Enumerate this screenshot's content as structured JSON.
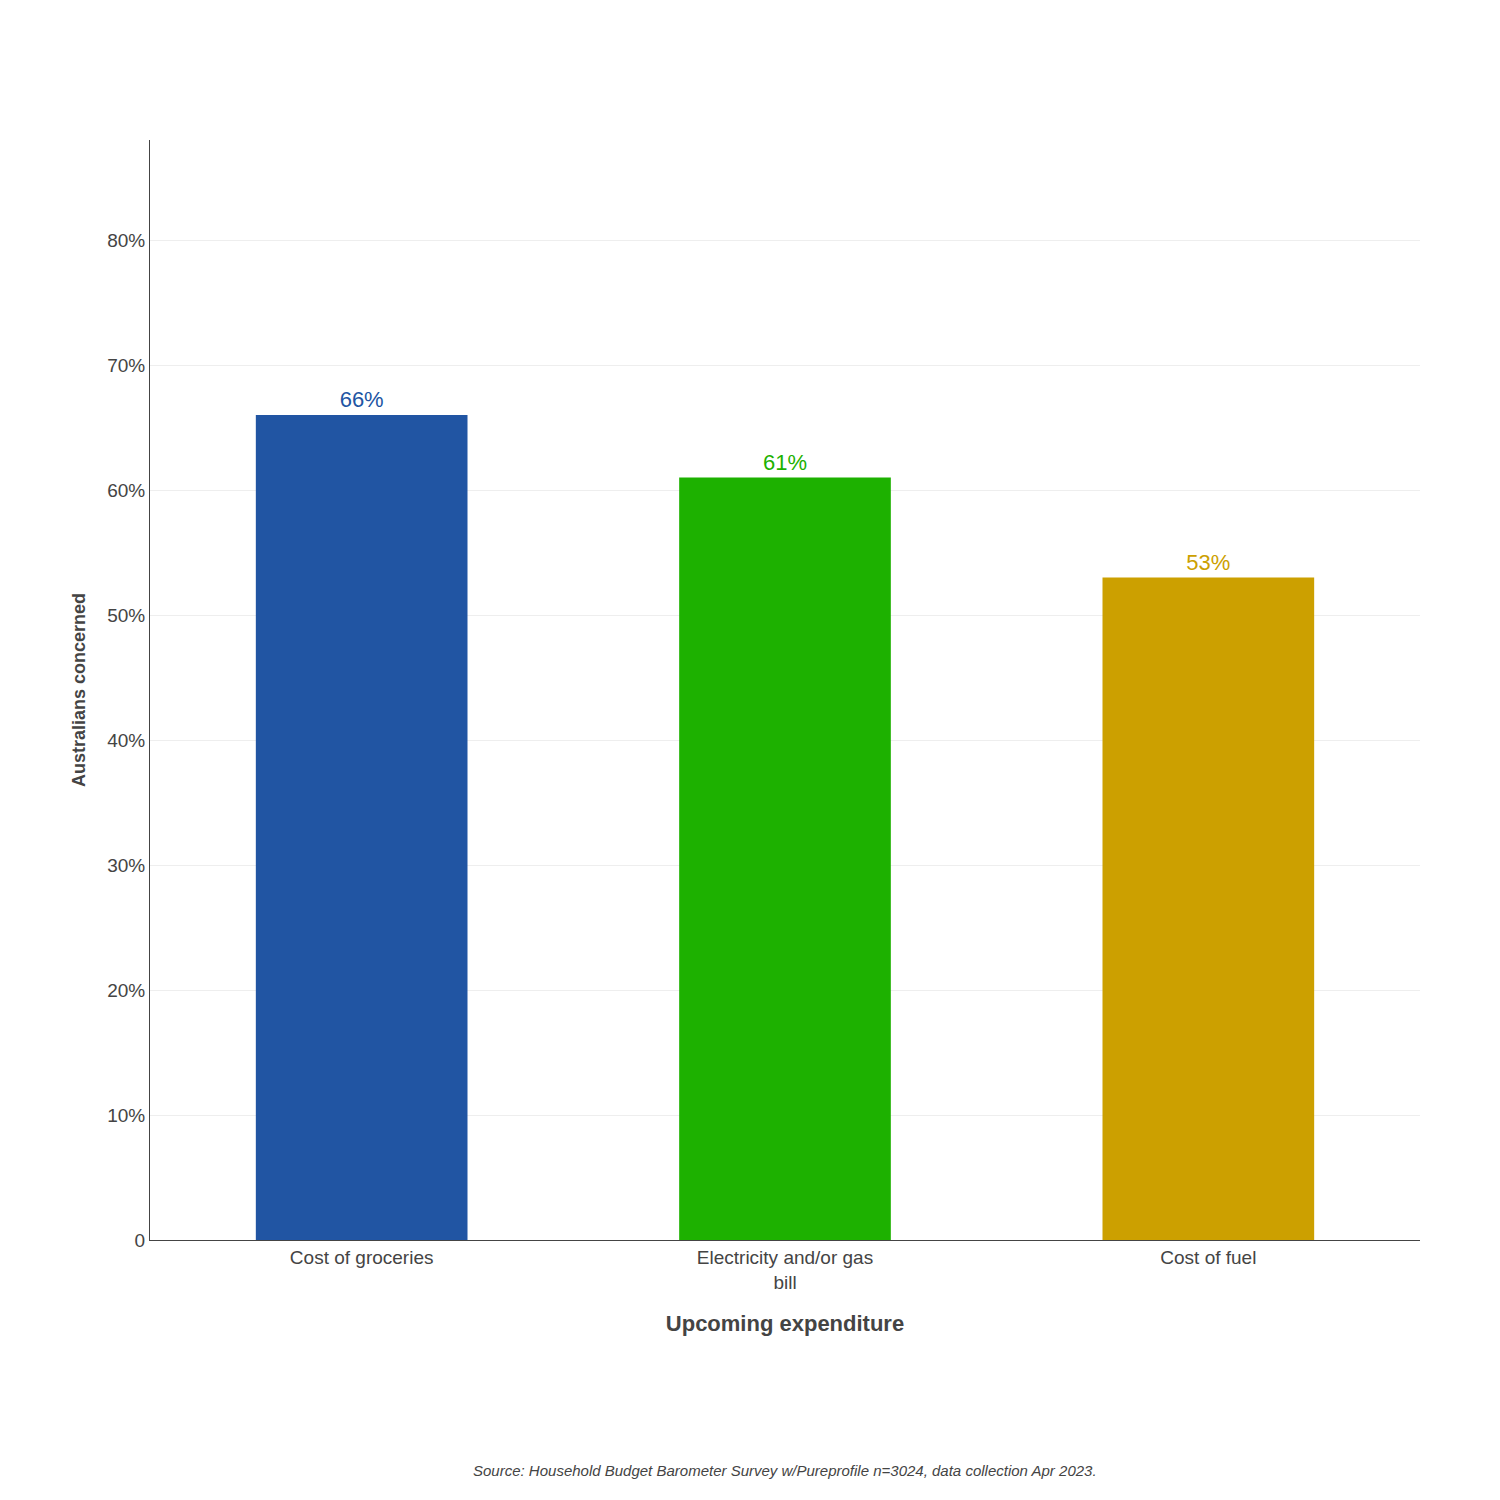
{
  "chart_data": {
    "type": "bar",
    "categories": [
      "Cost of groceries",
      "Electricity and/or gas\nbill",
      "Cost of fuel"
    ],
    "values": [
      66,
      61,
      53
    ],
    "value_labels": [
      "66%",
      "61%",
      "53%"
    ],
    "data_labels": true,
    "colors": [
      "#2155A3",
      "#1DB100",
      "#CCA000"
    ],
    "xlabel": "Upcoming expenditure",
    "ylabel": "Australians concerned",
    "annotations": [
      "Source: Household Budget Barometer Survey w/Pureprofile n=3024, data collection Apr 2023."
    ],
    "ylim": [
      0,
      88
    ],
    "yticks": [
      0,
      {
        "value": 10,
        "label": "10%"
      },
      {
        "value": 20,
        "label": "20%"
      },
      {
        "value": 30,
        "label": "30%"
      },
      {
        "value": 40,
        "label": "40%"
      },
      {
        "value": 50,
        "label": "50%"
      },
      {
        "value": 60,
        "label": "60%"
      },
      {
        "value": 70,
        "label": "70%"
      },
      {
        "value": 80,
        "label": "80%"
      }
    ],
    "grid": true
  }
}
